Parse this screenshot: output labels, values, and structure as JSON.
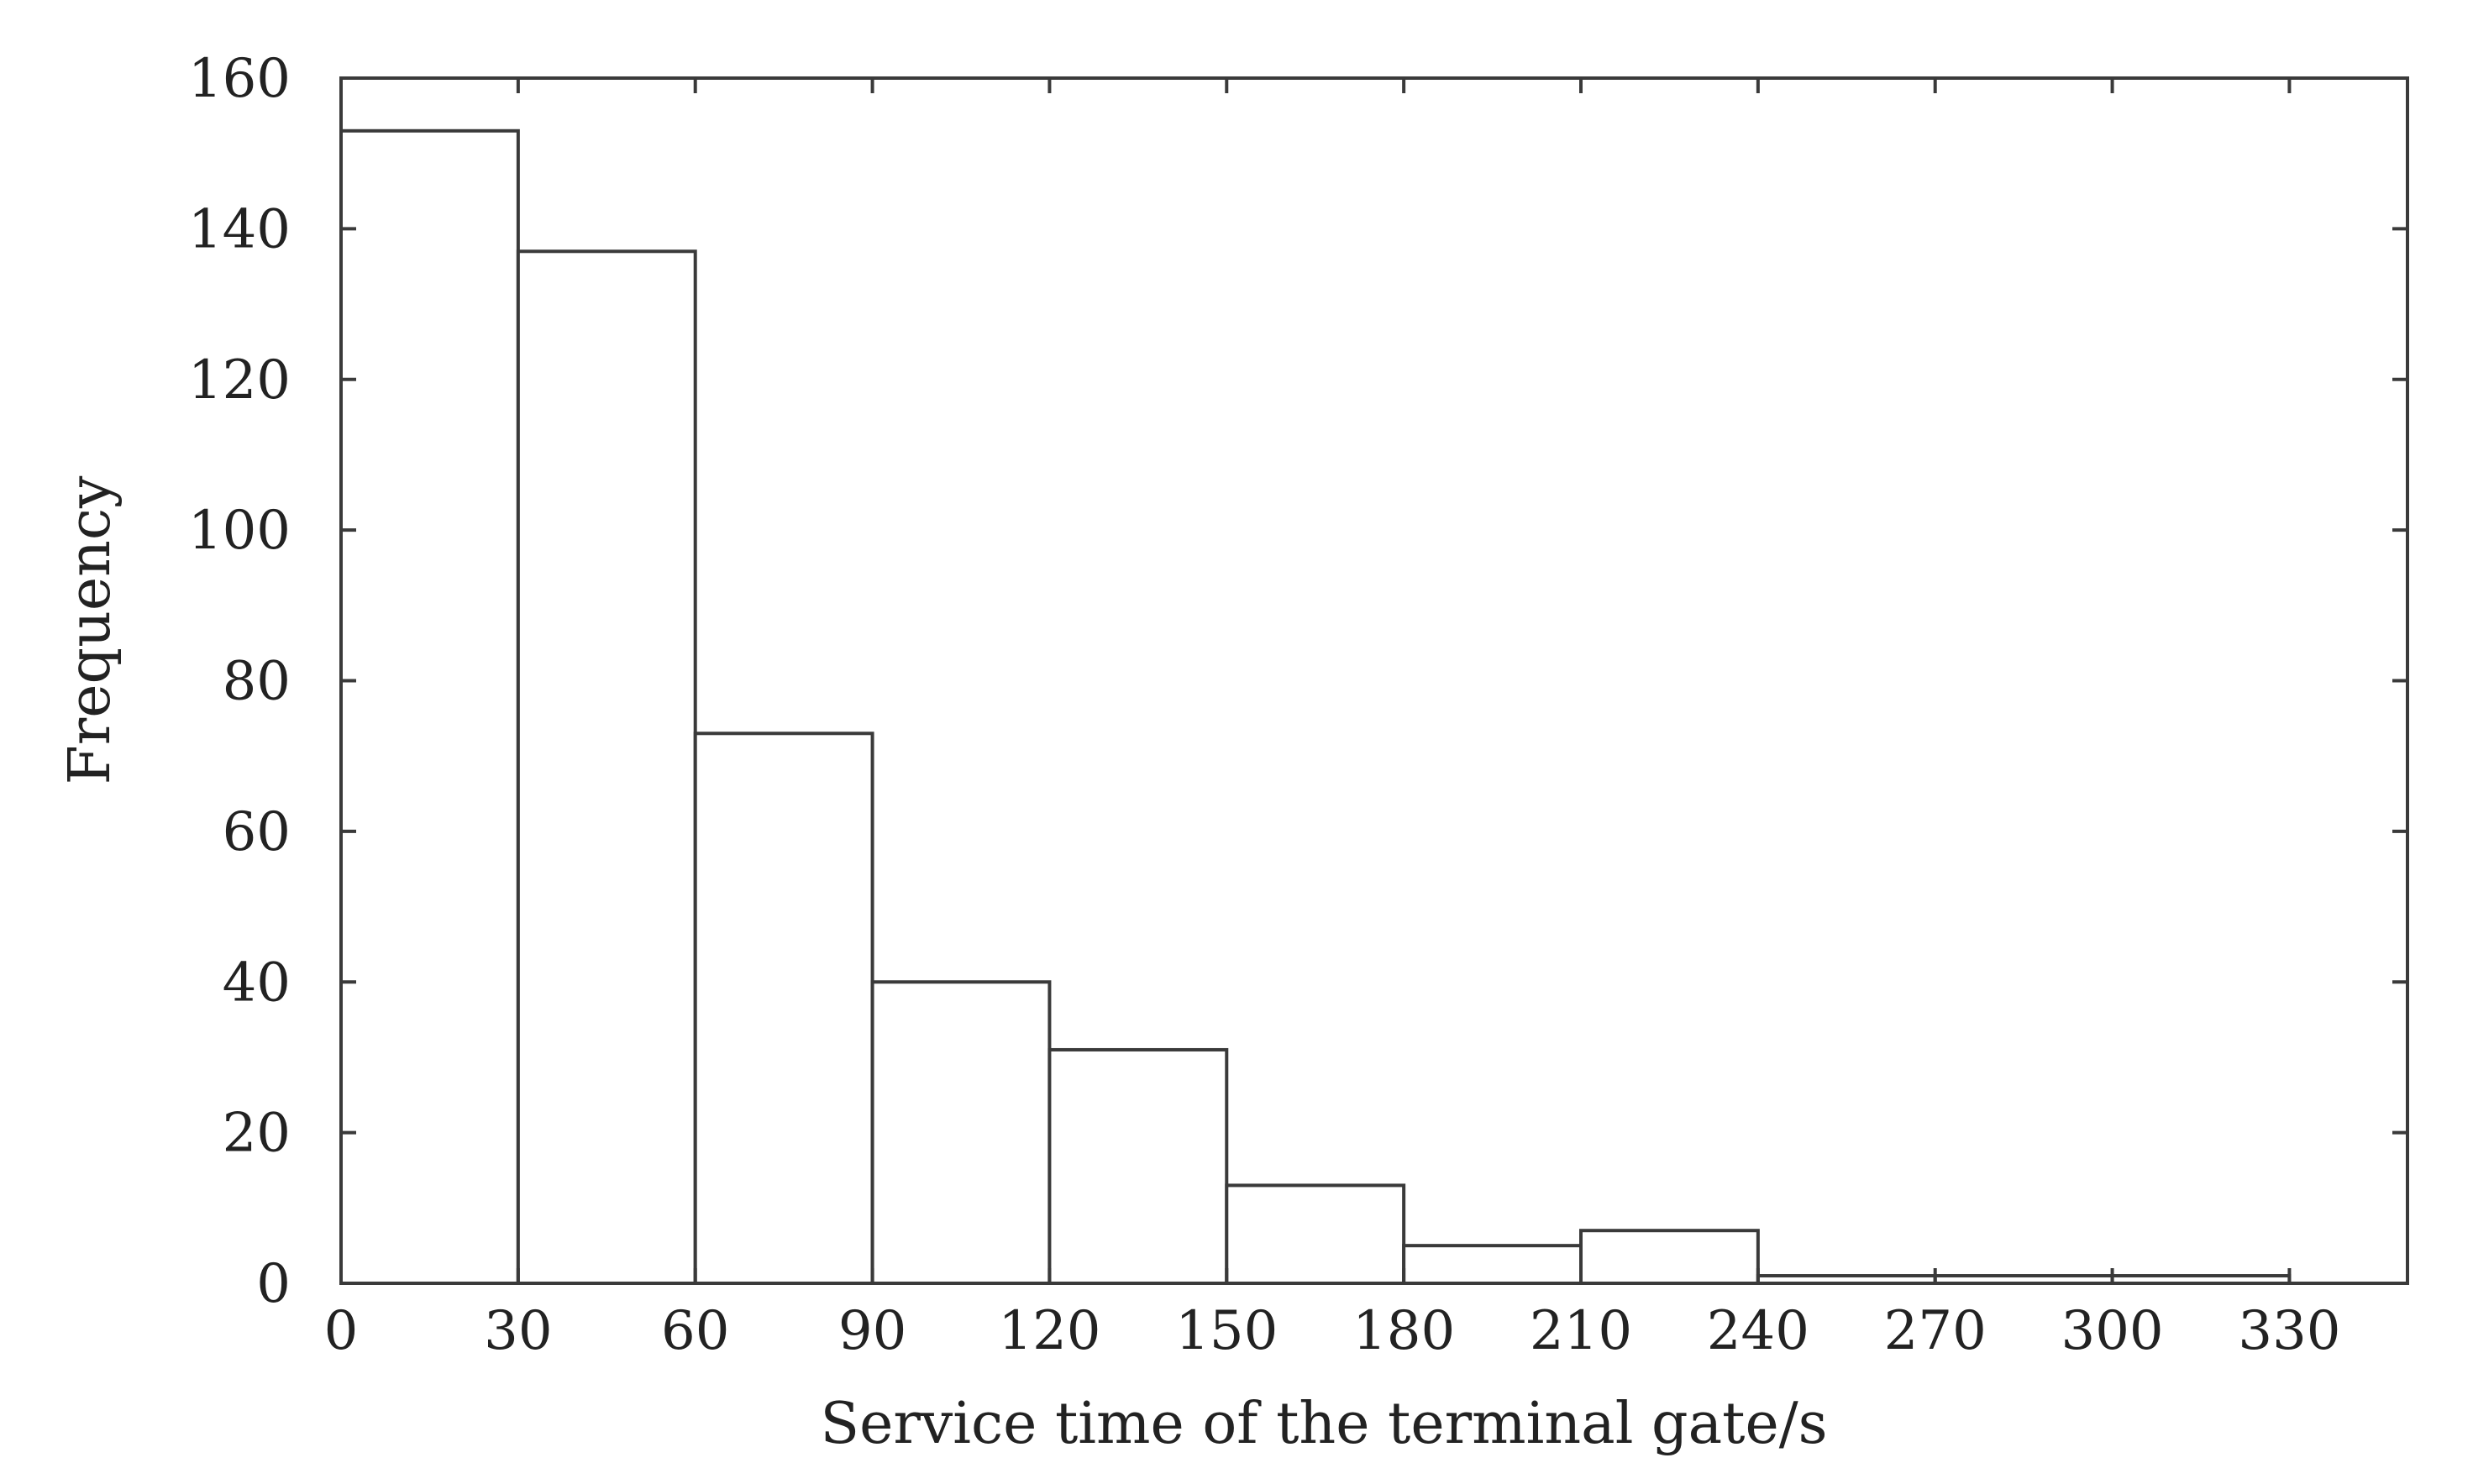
{
  "chart_data": {
    "type": "bar",
    "title": "",
    "xlabel": "Service time of the terminal gate/s",
    "ylabel": "Frequency",
    "bins": [
      {
        "start": 0,
        "end": 30,
        "value": 153
      },
      {
        "start": 30,
        "end": 60,
        "value": 137
      },
      {
        "start": 60,
        "end": 90,
        "value": 73
      },
      {
        "start": 90,
        "end": 120,
        "value": 40
      },
      {
        "start": 120,
        "end": 150,
        "value": 31
      },
      {
        "start": 150,
        "end": 180,
        "value": 13
      },
      {
        "start": 180,
        "end": 210,
        "value": 5
      },
      {
        "start": 210,
        "end": 240,
        "value": 7
      },
      {
        "start": 240,
        "end": 270,
        "value": 1
      },
      {
        "start": 270,
        "end": 300,
        "value": 1
      },
      {
        "start": 300,
        "end": 330,
        "value": 1
      }
    ],
    "x_ticks": [
      0,
      30,
      60,
      90,
      120,
      150,
      180,
      210,
      240,
      270,
      300,
      330
    ],
    "y_ticks": [
      0,
      20,
      40,
      60,
      80,
      100,
      120,
      140,
      160
    ],
    "xlim": [
      0,
      350
    ],
    "ylim": [
      0,
      160
    ],
    "grid": false,
    "bar_fill": "#ffffff",
    "bar_stroke": "#3a3a3a",
    "axis_color": "#3a3a3a"
  }
}
